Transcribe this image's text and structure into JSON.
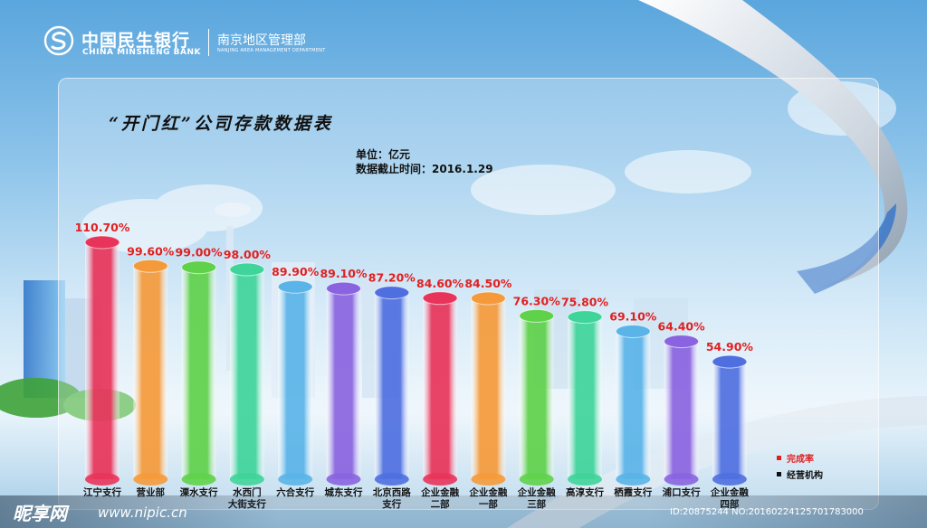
{
  "header": {
    "bank_name_cn": "中国民生银行",
    "bank_name_en": "CHINA MINSHENG BANK",
    "department_cn": "南京地区管理部",
    "department_en": "NANJING AREA MANAGEMENT DEPARTMENT"
  },
  "title": "“开门红”公司存款数据表",
  "meta": {
    "unit": "单位：亿元",
    "cutoff": "数据截止时间：2016.1.29"
  },
  "legend": [
    {
      "label": "完成率",
      "color": "#e02020"
    },
    {
      "label": "经营机构",
      "color": "#111111"
    }
  ],
  "watermark": {
    "site": "昵享网",
    "url": "www.nipic.cn",
    "id": "ID:20875244 NO:20160224125701783000"
  },
  "chart_data": {
    "type": "bar",
    "title": "“开门红”公司存款数据表",
    "ylabel": "",
    "value_format": "percent",
    "label_color": "#e02020",
    "categories": [
      [
        "江宁支行"
      ],
      [
        "营业部"
      ],
      [
        "溧水支行"
      ],
      [
        "水西门",
        "大街支行"
      ],
      [
        "六合支行"
      ],
      [
        "城东支行"
      ],
      [
        "北京西路",
        "支行"
      ],
      [
        "企业金融",
        "二部"
      ],
      [
        "企业金融",
        "一部"
      ],
      [
        "企业金融",
        "三部"
      ],
      [
        "高淳支行"
      ],
      [
        "栖霞支行"
      ],
      [
        "浦口支行"
      ],
      [
        "企业金融",
        "四部"
      ]
    ],
    "values": [
      110.7,
      99.6,
      99.0,
      98.0,
      89.9,
      89.1,
      87.2,
      84.6,
      84.5,
      76.3,
      75.8,
      69.1,
      64.4,
      54.9
    ],
    "labels": [
      "110.70%",
      "99.60%",
      "99.00%",
      "98.00%",
      "89.90%",
      "89.10%",
      "87.20%",
      "84.60%",
      "84.50%",
      "76.30%",
      "75.80%",
      "69.10%",
      "64.40%",
      "54.90%"
    ],
    "colors": [
      "#e8345a",
      "#f59a3a",
      "#5fd14a",
      "#3fd49a",
      "#5ab4e8",
      "#8a64e0",
      "#4f6fe0",
      "#e8345a",
      "#f59a3a",
      "#5fd14a",
      "#3fd49a",
      "#5ab4e8",
      "#8a64e0",
      "#4f6fe0"
    ],
    "ylim": [
      0,
      115
    ],
    "grid": false,
    "legend_position": "bottom-right"
  }
}
